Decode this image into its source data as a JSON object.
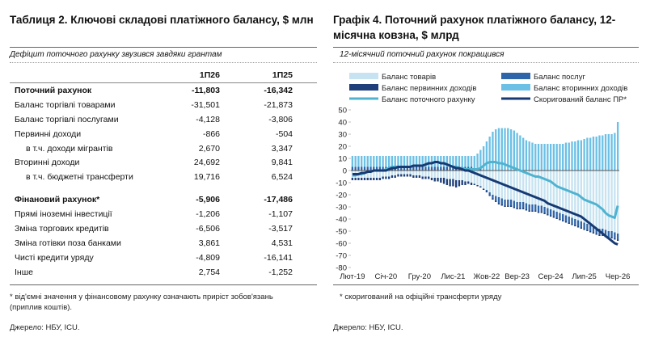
{
  "table": {
    "title": "Таблиця 2. Ключові складові платіжного балансу, $ млн",
    "subtitle": "Дефіцит поточного рахунку звузився завдяки грантам",
    "columns": [
      "1П26",
      "1П25"
    ],
    "rows": [
      {
        "label": "Поточний рахунок",
        "v1": "-11,803",
        "v2": "-16,342",
        "bold": true
      },
      {
        "label": "Баланс торгівлі товарами",
        "v1": "-31,501",
        "v2": "-21,873"
      },
      {
        "label": "Баланс торгівлі послугами",
        "v1": "-4,128",
        "v2": "-3,806"
      },
      {
        "label": "Первинні доходи",
        "v1": "-866",
        "v2": "-504"
      },
      {
        "label": "в т.ч. доходи мігрантів",
        "v1": "2,670",
        "v2": "3,347",
        "indent": true
      },
      {
        "label": "Вторинні доходи",
        "v1": "24,692",
        "v2": "9,841"
      },
      {
        "label": "в т.ч. бюджетні трансферти",
        "v1": "19,716",
        "v2": "6,524",
        "indent": true
      },
      {
        "label": "Фінановий рахунок*",
        "v1": "-5,906",
        "v2": "-17,486",
        "bold": true
      },
      {
        "label": "Прямі іноземні інвестиції",
        "v1": "-1,206",
        "v2": "-1,107"
      },
      {
        "label": "Зміна торгових кредитів",
        "v1": "-6,506",
        "v2": "-3,517"
      },
      {
        "label": "Зміна готівки поза банками",
        "v1": "3,861",
        "v2": "4,531"
      },
      {
        "label": "Чисті кредити уряду",
        "v1": "-4,809",
        "v2": "-16,141"
      },
      {
        "label": "Інше",
        "v1": "2,754",
        "v2": "-1,252"
      }
    ],
    "note": "* від'ємні значення у фінансовому рахунку означають приріст зобов'язань (приплив коштів).",
    "source": "Джерело: НБУ, ICU."
  },
  "chart": {
    "title_line1": "Графік 4. Поточний рахунок платіжного балансу, 12-",
    "title_line2": "місячна ковзна, $ млрд",
    "subtitle": "12-місячний поточний рахунок покращився",
    "note": "* скоригований на офіційні трансферти уряду",
    "source": "Джерело: НБУ, ICU."
  },
  "chart_data": {
    "type": "bar",
    "ylim": [
      -80,
      50
    ],
    "yticks": [
      50,
      40,
      30,
      20,
      10,
      0,
      -10,
      -20,
      -30,
      -40,
      -50,
      -60,
      -70,
      -80
    ],
    "x_tick_labels": [
      "Лют-19",
      "Січ-20",
      "Гру-20",
      "Лис-21",
      "Жов-22",
      "Вер-23",
      "Сер-24",
      "Лип-25",
      "Чер-26"
    ],
    "legend_position": "top",
    "colors": {
      "goods": "#c7e3f1",
      "services": "#2e64a8",
      "primary": "#1e3f7a",
      "secondary": "#6cc0e5",
      "current": "#4fb3d0",
      "adjusted": "#173a73"
    },
    "series": [
      {
        "name": "Баланс товарів",
        "type": "bar",
        "values": [
          -6,
          -6,
          -6,
          -6,
          -6,
          -6,
          -6,
          -6,
          -6,
          -6,
          -5,
          -5,
          -5,
          -4,
          -4,
          -3,
          -3,
          -3,
          -3,
          -3,
          -4,
          -4,
          -4,
          -5,
          -5,
          -5,
          -6,
          -6,
          -6,
          -6,
          -6,
          -7,
          -7,
          -7,
          -8,
          -8,
          -8,
          -9,
          -9,
          -10,
          -11,
          -12,
          -13,
          -15,
          -16,
          -18,
          -20,
          -21,
          -22,
          -23,
          -24,
          -24,
          -24,
          -25,
          -26,
          -26,
          -26,
          -27,
          -28,
          -28,
          -28,
          -29,
          -29,
          -30,
          -31,
          -32,
          -33,
          -34,
          -35,
          -36,
          -37,
          -38,
          -39,
          -40,
          -41,
          -42,
          -43,
          -44,
          -45,
          -46,
          -47,
          -48,
          -48,
          -49,
          -50,
          -50,
          -51,
          -52
        ]
      },
      {
        "name": "Баланс послуг",
        "type": "bar",
        "values": [
          3,
          3,
          3,
          3,
          3,
          3,
          3,
          3,
          3,
          3,
          3,
          3,
          3,
          3,
          3,
          3,
          3,
          3,
          3,
          3,
          3,
          3,
          3,
          3,
          3,
          3,
          3,
          3,
          3,
          3,
          3,
          3,
          3,
          3,
          3,
          3,
          3,
          3,
          3,
          3,
          2,
          2,
          1,
          0,
          -1,
          -2,
          -3,
          -4,
          -5,
          -5,
          -5,
          -5,
          -5,
          -5,
          -5,
          -5,
          -5,
          -5,
          -5,
          -5,
          -5,
          -5,
          -5,
          -5,
          -5,
          -5,
          -5,
          -5,
          -5,
          -5,
          -5,
          -5,
          -5,
          -5,
          -5,
          -5,
          -5,
          -5,
          -5,
          -5,
          -5,
          -5,
          -5,
          -5,
          -5,
          -5,
          -5,
          -5
        ]
      },
      {
        "name": "Баланс первинних доходів",
        "type": "bar",
        "values": [
          -2,
          -2,
          -2,
          -2,
          -2,
          -2,
          -2,
          -2,
          -2,
          -2,
          -2,
          -2,
          -2,
          -2,
          -2,
          -2,
          -2,
          -2,
          -2,
          -2,
          -2,
          -2,
          -2,
          -2,
          -2,
          -2,
          -2,
          -3,
          -3,
          -4,
          -5,
          -5,
          -6,
          -6,
          -6,
          -5,
          -4,
          -3,
          -2,
          -2,
          -1,
          -1,
          -1,
          -1,
          -1,
          -1,
          -1,
          -1,
          -1,
          -1,
          -1,
          -1,
          -1,
          -1,
          -1,
          -1,
          -1,
          -1,
          -1,
          -1,
          -1,
          -1,
          -1,
          -1,
          -1,
          -1,
          -1,
          -1,
          -1,
          -1,
          -1,
          -1,
          -1,
          -1,
          -1,
          -1,
          -1,
          -1,
          -1,
          -1,
          -1,
          -1,
          -1,
          -1,
          -1,
          -1,
          -1,
          -1
        ]
      },
      {
        "name": "Баланс вторинних доходів",
        "type": "bar",
        "values": [
          9,
          9,
          9,
          9,
          9,
          9,
          9,
          9,
          9,
          9,
          9,
          9,
          9,
          9,
          9,
          9,
          9,
          9,
          9,
          9,
          9,
          9,
          9,
          9,
          9,
          9,
          9,
          9,
          9,
          9,
          9,
          9,
          9,
          9,
          9,
          9,
          9,
          9,
          9,
          9,
          10,
          12,
          16,
          20,
          24,
          28,
          32,
          34,
          35,
          35,
          35,
          35,
          34,
          33,
          31,
          29,
          27,
          25,
          24,
          23,
          22,
          22,
          22,
          22,
          22,
          22,
          22,
          22,
          22,
          22,
          23,
          23,
          24,
          24,
          25,
          25,
          26,
          27,
          27,
          28,
          28,
          29,
          29,
          30,
          30,
          30,
          31,
          40
        ]
      },
      {
        "name": "Баланс поточного рахунку",
        "type": "line",
        "values": [
          -4,
          -4,
          -3,
          -3,
          -2,
          -1,
          -1,
          0,
          0,
          0,
          0,
          1,
          2,
          3,
          3,
          3,
          3,
          3,
          3,
          3,
          4,
          4,
          4,
          4,
          5,
          6,
          6,
          7,
          7,
          6,
          6,
          5,
          4,
          3,
          3,
          2,
          2,
          1,
          1,
          1,
          1,
          1,
          2,
          4,
          6,
          7,
          7,
          7,
          6,
          6,
          5,
          4,
          3,
          2,
          1,
          0,
          -1,
          -2,
          -3,
          -4,
          -5,
          -5,
          -6,
          -7,
          -8,
          -9,
          -11,
          -13,
          -14,
          -15,
          -16,
          -17,
          -18,
          -19,
          -20,
          -22,
          -24,
          -25,
          -26,
          -27,
          -28,
          -30,
          -32,
          -35,
          -37,
          -38,
          -39,
          -29
        ]
      },
      {
        "name": "Скоригований баланс ПР*",
        "type": "line",
        "values": [
          -3,
          -3,
          -3,
          -2,
          -2,
          -1,
          -1,
          0,
          0,
          0,
          0,
          0,
          1,
          2,
          2,
          3,
          3,
          3,
          3,
          3,
          4,
          4,
          4,
          4,
          5,
          6,
          6,
          7,
          7,
          6,
          6,
          5,
          4,
          3,
          2,
          2,
          1,
          0,
          0,
          -1,
          -2,
          -3,
          -4,
          -5,
          -6,
          -7,
          -8,
          -9,
          -10,
          -11,
          -12,
          -13,
          -14,
          -15,
          -16,
          -17,
          -18,
          -19,
          -20,
          -21,
          -22,
          -23,
          -24,
          -25,
          -27,
          -28,
          -29,
          -30,
          -31,
          -32,
          -33,
          -34,
          -35,
          -36,
          -37,
          -38,
          -40,
          -42,
          -44,
          -46,
          -48,
          -50,
          -52,
          -54,
          -56,
          -58,
          -60,
          -61
        ]
      }
    ]
  }
}
